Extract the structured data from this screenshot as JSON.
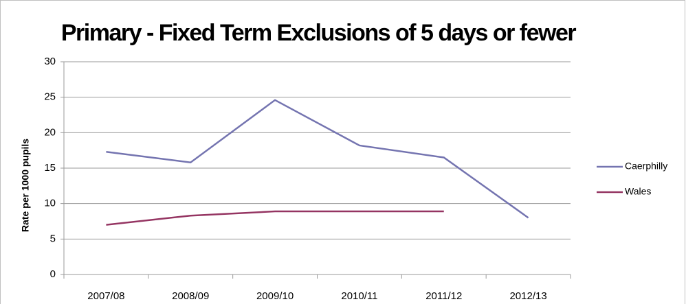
{
  "chart_data": {
    "type": "line",
    "title": "Primary - Fixed Term Exclusions of 5 days or fewer",
    "y_label": "Rate per 1000 pupils",
    "categories": [
      "2007/08",
      "2008/09",
      "2009/10",
      "2010/11",
      "2011/12",
      "2012/13"
    ],
    "series": [
      {
        "name": "Caerphilly",
        "color": "#7474b0",
        "values": [
          17.3,
          15.8,
          24.6,
          18.2,
          16.5,
          8.0
        ]
      },
      {
        "name": "Wales",
        "color": "#953562",
        "values": [
          7.0,
          8.3,
          8.9,
          8.9,
          8.9,
          null
        ]
      }
    ],
    "ylim": [
      0,
      30
    ],
    "yticks": [
      0,
      5,
      10,
      15,
      20,
      25,
      30
    ],
    "grid": true,
    "legend": "right"
  }
}
